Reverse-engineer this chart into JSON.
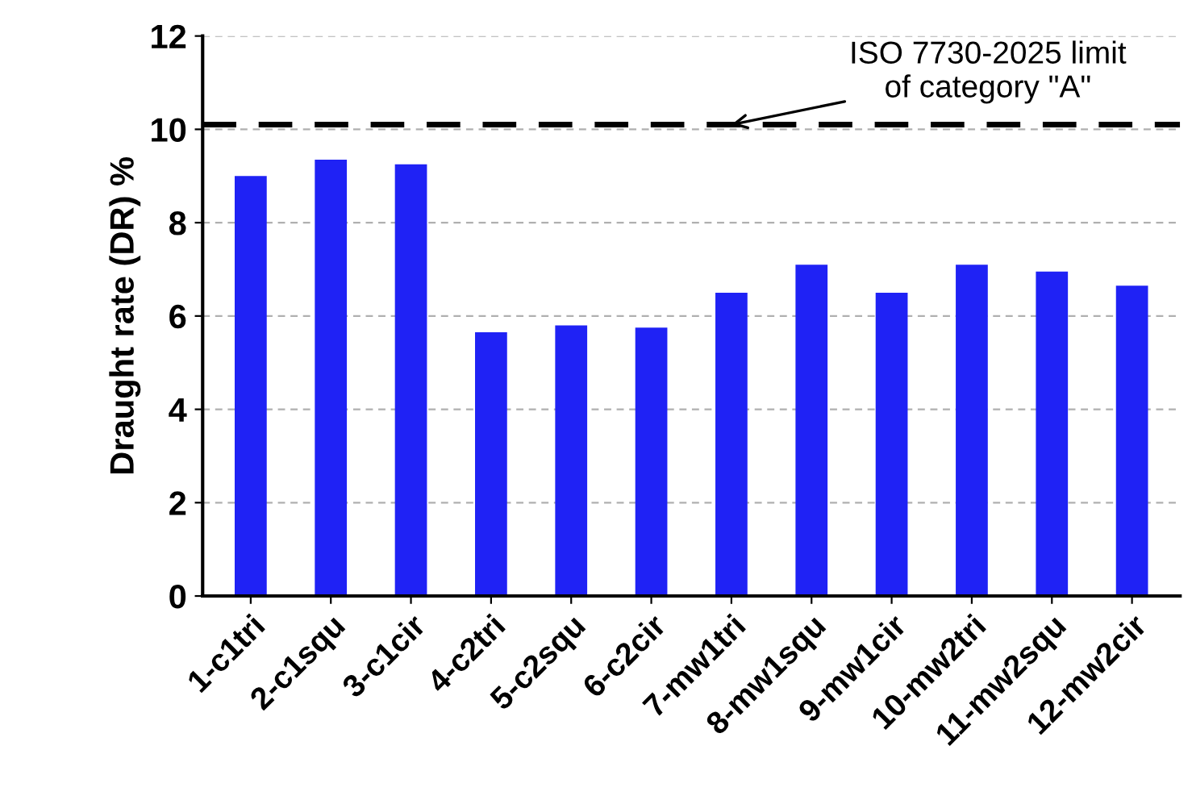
{
  "chart_data": {
    "type": "bar",
    "ylabel": "Draught rate (DR) %",
    "categories": [
      "1-c1tri",
      "2-c1squ",
      "3-c1cir",
      "4-c2tri",
      "5-c2squ",
      "6-c2cir",
      "7-mw1tri",
      "8-mw1squ",
      "9-mw1cir",
      "10-mw2tri",
      "11-mw2squ",
      "12-mw2cir"
    ],
    "values": [
      9.0,
      9.35,
      9.25,
      5.65,
      5.8,
      5.75,
      6.5,
      7.1,
      6.5,
      7.1,
      6.95,
      6.65
    ],
    "color": "#1f22f5",
    "ylim": [
      0,
      12
    ],
    "yticks": [
      0,
      2,
      4,
      6,
      8,
      10,
      12
    ],
    "grid": "y",
    "ref_lines": [
      {
        "axis": "y",
        "value": 10.1,
        "color": "#000000",
        "line_style": "dashed"
      }
    ],
    "annotations": [
      {
        "text": "ISO 7730-2025 limit\nof category \"A\"",
        "x": "7-mw1tri",
        "y": 10.1
      }
    ]
  }
}
